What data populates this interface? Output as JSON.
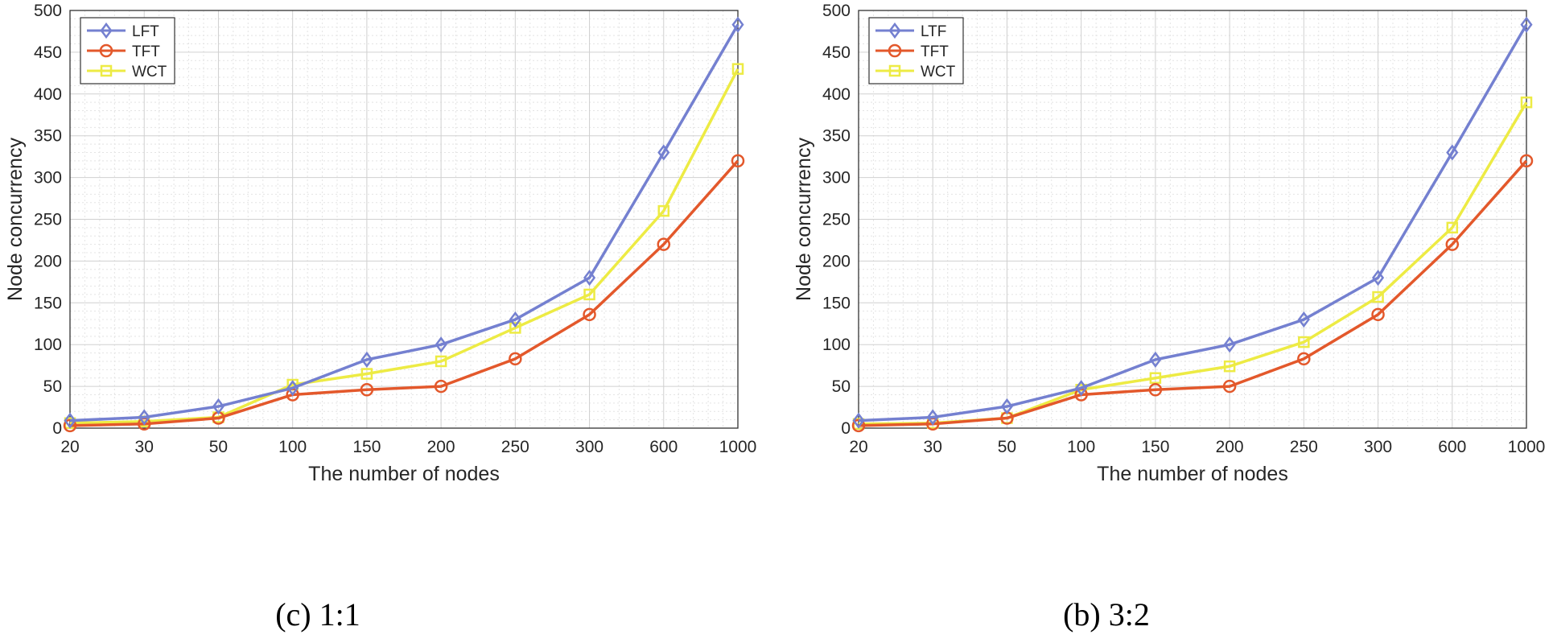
{
  "chart_data": [
    {
      "type": "line",
      "caption": "(c)  1:1",
      "xlabel": "The number of nodes",
      "ylabel": "Node concurrency",
      "categories": [
        "20",
        "30",
        "50",
        "100",
        "150",
        "200",
        "250",
        "300",
        "600",
        "1000"
      ],
      "ylim": [
        0,
        500
      ],
      "yticks": [
        "0",
        "50",
        "100",
        "150",
        "200",
        "250",
        "300",
        "350",
        "400",
        "450",
        "500"
      ],
      "grid": true,
      "legend_position": "top-left",
      "series": [
        {
          "name": "LFT",
          "color": "#7480D0",
          "marker": "diamond",
          "values": [
            9,
            13,
            26,
            48,
            82,
            100,
            130,
            180,
            330,
            483
          ]
        },
        {
          "name": "TFT",
          "color": "#E3582B",
          "marker": "circle",
          "values": [
            3,
            5,
            12,
            40,
            46,
            50,
            83,
            136,
            220,
            320
          ]
        },
        {
          "name": "WCT",
          "color": "#EDEB44",
          "marker": "square",
          "values": [
            6,
            8,
            13,
            52,
            65,
            80,
            120,
            160,
            260,
            430
          ]
        }
      ]
    },
    {
      "type": "line",
      "caption": "(b)  3:2",
      "xlabel": "The number of nodes",
      "ylabel": "Node concurrency",
      "categories": [
        "20",
        "30",
        "50",
        "100",
        "150",
        "200",
        "250",
        "300",
        "600",
        "1000"
      ],
      "ylim": [
        0,
        500
      ],
      "yticks": [
        "0",
        "50",
        "100",
        "150",
        "200",
        "250",
        "300",
        "350",
        "400",
        "450",
        "500"
      ],
      "grid": true,
      "legend_position": "top-left",
      "series": [
        {
          "name": "LTF",
          "color": "#7480D0",
          "marker": "diamond",
          "values": [
            9,
            13,
            26,
            48,
            82,
            100,
            130,
            180,
            330,
            483
          ]
        },
        {
          "name": "TFT",
          "color": "#E3582B",
          "marker": "circle",
          "values": [
            3,
            5,
            12,
            40,
            46,
            50,
            83,
            136,
            220,
            320
          ]
        },
        {
          "name": "WCT",
          "color": "#EDEB44",
          "marker": "square",
          "values": [
            5,
            6,
            12,
            46,
            60,
            74,
            103,
            157,
            240,
            390
          ]
        }
      ]
    }
  ]
}
